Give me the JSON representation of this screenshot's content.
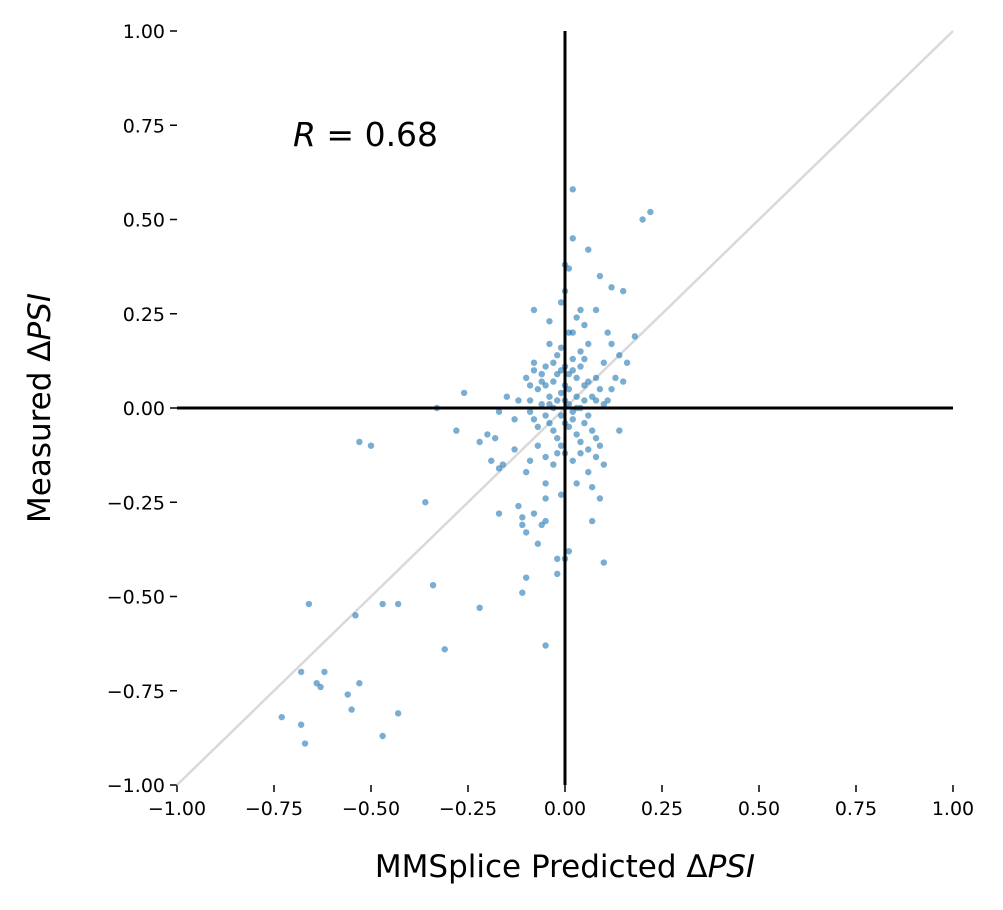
{
  "chart_data": {
    "type": "scatter",
    "xlabel_prefix": "MMSplice Predicted Δ",
    "xlabel_italic": "PSI",
    "ylabel_prefix": "Measured Δ",
    "ylabel_italic": "PSI",
    "annotation_var": "R",
    "annotation_rest": " = 0.68",
    "xlim": [
      -1.0,
      1.0
    ],
    "ylim": [
      -1.0,
      1.0
    ],
    "xticks": [
      "−1.00",
      "−0.75",
      "−0.50",
      "−0.25",
      "0.00",
      "0.25",
      "0.50",
      "0.75",
      "1.00"
    ],
    "yticks": [
      "1.00",
      "0.75",
      "0.50",
      "0.25",
      "0.00",
      "−0.25",
      "−0.50",
      "−0.75",
      "−1.00"
    ],
    "xtick_values": [
      -1.0,
      -0.75,
      -0.5,
      -0.25,
      0.0,
      0.25,
      0.5,
      0.75,
      1.0
    ],
    "ytick_values": [
      1.0,
      0.75,
      0.5,
      0.25,
      0.0,
      -0.25,
      -0.5,
      -0.75,
      -1.0
    ],
    "reference_lines": {
      "diagonal": true,
      "x_zero": true,
      "y_zero": true
    },
    "colors": {
      "points": "#1f77b4",
      "diagonal": "#d9d9d9",
      "axes": "#000000"
    },
    "grid": false,
    "points": [
      [
        0.02,
        0.58
      ],
      [
        0.22,
        0.52
      ],
      [
        0.2,
        0.5
      ],
      [
        0.02,
        0.45
      ],
      [
        0.06,
        0.42
      ],
      [
        0.0,
        0.38
      ],
      [
        0.01,
        0.37
      ],
      [
        0.09,
        0.35
      ],
      [
        0.12,
        0.32
      ],
      [
        0.15,
        0.31
      ],
      [
        0.0,
        0.31
      ],
      [
        -0.08,
        0.26
      ],
      [
        0.04,
        0.26
      ],
      [
        0.08,
        0.26
      ],
      [
        -0.01,
        0.28
      ],
      [
        0.03,
        0.24
      ],
      [
        -0.04,
        0.23
      ],
      [
        0.05,
        0.22
      ],
      [
        0.01,
        0.2
      ],
      [
        0.02,
        0.2
      ],
      [
        0.11,
        0.2
      ],
      [
        0.18,
        0.19
      ],
      [
        -0.04,
        0.17
      ],
      [
        -0.01,
        0.16
      ],
      [
        0.06,
        0.17
      ],
      [
        0.12,
        0.17
      ],
      [
        0.14,
        0.14
      ],
      [
        -0.08,
        0.12
      ],
      [
        -0.03,
        0.12
      ],
      [
        0.05,
        0.13
      ],
      [
        0.1,
        0.12
      ],
      [
        0.16,
        0.12
      ],
      [
        -0.1,
        0.08
      ],
      [
        -0.06,
        0.07
      ],
      [
        0.08,
        0.08
      ],
      [
        0.13,
        0.08
      ],
      [
        0.15,
        0.07
      ],
      [
        -0.15,
        0.03
      ],
      [
        -0.12,
        0.02
      ],
      [
        -0.26,
        0.04
      ],
      [
        0.12,
        0.05
      ],
      [
        -0.33,
        0.0
      ],
      [
        -0.17,
        -0.01
      ],
      [
        -0.13,
        -0.03
      ],
      [
        -0.09,
        -0.01
      ],
      [
        0.03,
        0.0
      ],
      [
        0.14,
        -0.06
      ],
      [
        -0.28,
        -0.06
      ],
      [
        -0.2,
        -0.07
      ],
      [
        -0.18,
        -0.08
      ],
      [
        -0.22,
        -0.09
      ],
      [
        -0.13,
        -0.11
      ],
      [
        -0.53,
        -0.09
      ],
      [
        -0.5,
        -0.1
      ],
      [
        -0.09,
        -0.14
      ],
      [
        -0.19,
        -0.14
      ],
      [
        -0.16,
        -0.15
      ],
      [
        0.1,
        -0.15
      ],
      [
        -0.17,
        -0.16
      ],
      [
        -0.1,
        -0.17
      ],
      [
        0.06,
        -0.17
      ],
      [
        0.03,
        -0.2
      ],
      [
        -0.05,
        -0.2
      ],
      [
        0.07,
        -0.21
      ],
      [
        -0.01,
        -0.23
      ],
      [
        -0.05,
        -0.24
      ],
      [
        0.09,
        -0.24
      ],
      [
        -0.36,
        -0.25
      ],
      [
        -0.12,
        -0.26
      ],
      [
        -0.17,
        -0.28
      ],
      [
        -0.08,
        -0.28
      ],
      [
        -0.11,
        -0.29
      ],
      [
        -0.11,
        -0.31
      ],
      [
        -0.05,
        -0.3
      ],
      [
        0.07,
        -0.3
      ],
      [
        -0.1,
        -0.33
      ],
      [
        -0.06,
        -0.31
      ],
      [
        -0.07,
        -0.36
      ],
      [
        0.01,
        -0.38
      ],
      [
        -0.02,
        -0.4
      ],
      [
        0.0,
        -0.4
      ],
      [
        0.1,
        -0.41
      ],
      [
        -0.02,
        -0.44
      ],
      [
        -0.1,
        -0.45
      ],
      [
        -0.34,
        -0.47
      ],
      [
        -0.11,
        -0.49
      ],
      [
        -0.66,
        -0.52
      ],
      [
        -0.47,
        -0.52
      ],
      [
        -0.43,
        -0.52
      ],
      [
        -0.22,
        -0.53
      ],
      [
        -0.54,
        -0.55
      ],
      [
        -0.31,
        -0.64
      ],
      [
        -0.05,
        -0.63
      ],
      [
        -0.68,
        -0.7
      ],
      [
        -0.62,
        -0.7
      ],
      [
        -0.64,
        -0.73
      ],
      [
        -0.63,
        -0.74
      ],
      [
        -0.53,
        -0.73
      ],
      [
        -0.56,
        -0.76
      ],
      [
        -0.55,
        -0.8
      ],
      [
        -0.73,
        -0.82
      ],
      [
        -0.43,
        -0.81
      ],
      [
        -0.68,
        -0.84
      ],
      [
        -0.47,
        -0.87
      ],
      [
        -0.67,
        -0.89
      ],
      [
        -0.07,
        0.05
      ],
      [
        -0.05,
        0.06
      ],
      [
        -0.04,
        0.03
      ],
      [
        -0.03,
        0.07
      ],
      [
        -0.02,
        0.09
      ],
      [
        -0.01,
        0.1
      ],
      [
        0.0,
        0.11
      ],
      [
        0.01,
        0.09
      ],
      [
        0.02,
        0.1
      ],
      [
        0.03,
        0.08
      ],
      [
        0.04,
        0.11
      ],
      [
        0.05,
        0.06
      ],
      [
        0.06,
        0.07
      ],
      [
        0.07,
        0.03
      ],
      [
        0.08,
        0.02
      ],
      [
        0.09,
        0.05
      ],
      [
        0.1,
        0.01
      ],
      [
        0.11,
        0.02
      ],
      [
        -0.06,
        0.01
      ],
      [
        -0.05,
        -0.02
      ],
      [
        -0.04,
        -0.04
      ],
      [
        -0.03,
        -0.06
      ],
      [
        -0.02,
        -0.08
      ],
      [
        -0.01,
        -0.1
      ],
      [
        0.0,
        -0.12
      ],
      [
        0.01,
        -0.05
      ],
      [
        0.02,
        -0.03
      ],
      [
        0.03,
        -0.07
      ],
      [
        0.04,
        -0.09
      ],
      [
        0.05,
        -0.04
      ],
      [
        0.06,
        -0.02
      ],
      [
        0.07,
        -0.06
      ],
      [
        0.08,
        -0.08
      ],
      [
        -0.07,
        -0.05
      ],
      [
        -0.08,
        -0.03
      ],
      [
        -0.09,
        0.02
      ],
      [
        -0.02,
        0.02
      ],
      [
        -0.01,
        0.04
      ],
      [
        0.0,
        0.02
      ],
      [
        0.01,
        0.01
      ],
      [
        0.02,
        -0.01
      ],
      [
        0.03,
        0.03
      ],
      [
        -0.03,
        0.0
      ],
      [
        -0.04,
        0.01
      ],
      [
        0.04,
        0.0
      ],
      [
        0.05,
        0.02
      ],
      [
        -0.06,
        0.09
      ],
      [
        -0.05,
        0.11
      ],
      [
        0.02,
        0.13
      ],
      [
        0.04,
        0.15
      ],
      [
        -0.02,
        0.14
      ],
      [
        0.0,
        0.06
      ],
      [
        0.01,
        0.05
      ],
      [
        -0.01,
        -0.02
      ],
      [
        0.0,
        -0.04
      ],
      [
        -0.02,
        -0.12
      ],
      [
        -0.03,
        -0.15
      ],
      [
        0.02,
        -0.14
      ],
      [
        0.04,
        -0.12
      ],
      [
        -0.07,
        -0.1
      ],
      [
        -0.05,
        -0.13
      ],
      [
        0.06,
        -0.11
      ],
      [
        0.08,
        -0.13
      ],
      [
        0.09,
        -0.1
      ],
      [
        -0.08,
        0.1
      ],
      [
        -0.09,
        0.06
      ]
    ]
  }
}
